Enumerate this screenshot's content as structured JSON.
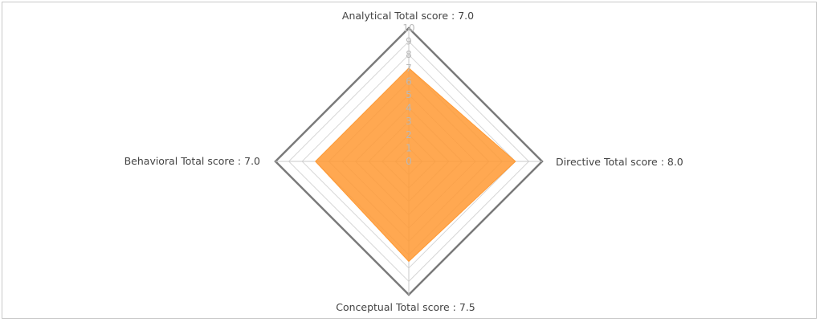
{
  "chart_data": {
    "type": "radar",
    "title": "",
    "axes": [
      {
        "name": "Analytical",
        "label": "Analytical Total score : 7.0",
        "value": 7.0
      },
      {
        "name": "Directive",
        "label": "Directive Total score :  8.0",
        "value": 8.0
      },
      {
        "name": "Conceptual",
        "label": "Conceptual Total score : 7.5",
        "value": 7.5
      },
      {
        "name": "Behavioral",
        "label": "Behavioral Total score : 7.0",
        "value": 7.0
      }
    ],
    "range": [
      0,
      10
    ],
    "ticks": [
      "0",
      "1",
      "2",
      "3",
      "4",
      "5",
      "6",
      "7",
      "8",
      "9",
      "10"
    ],
    "grid": true,
    "legend": "none",
    "colors": {
      "fill": "#ff9933",
      "grid": "#d6d6d6",
      "outer": "#7a7a7a",
      "spoke": "#c8c8c8"
    }
  }
}
